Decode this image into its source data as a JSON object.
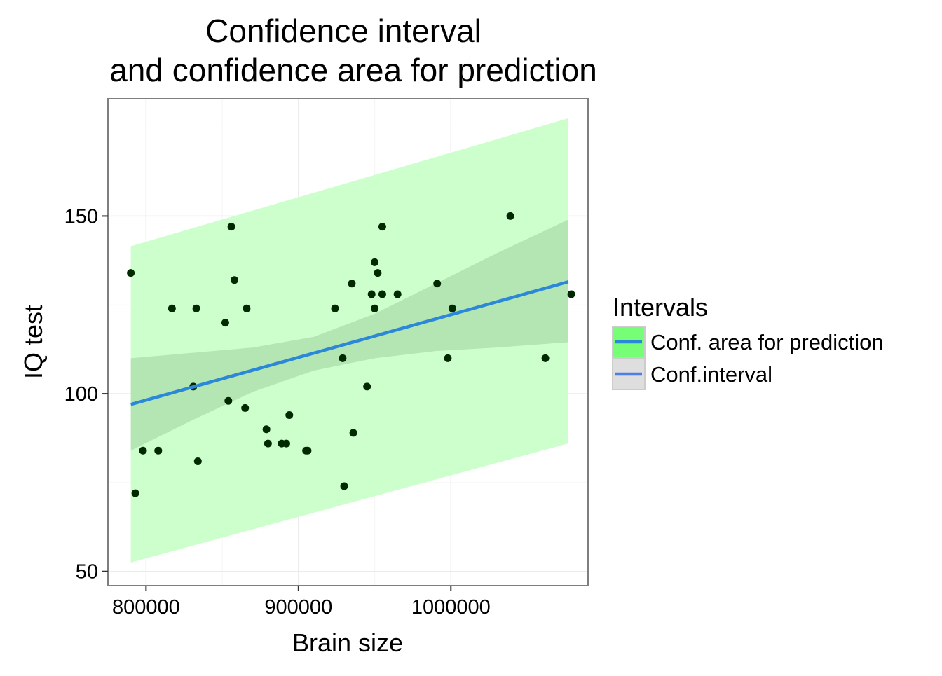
{
  "chart_data": {
    "type": "scatter",
    "title": [
      "Confidence interval",
      "and confidence area for prediction"
    ],
    "xlabel": "Brain size",
    "ylabel": "IQ test",
    "xlim": [
      775000,
      1090000
    ],
    "ylim": [
      46,
      183
    ],
    "x_ticks": [
      800000,
      900000,
      1000000
    ],
    "x_tick_labels": [
      "800000",
      "900000",
      "1000000"
    ],
    "y_ticks": [
      50,
      100,
      150
    ],
    "y_tick_labels": [
      "50",
      "100",
      "150"
    ],
    "grid": true,
    "legend": {
      "title": "Intervals",
      "placement": "right",
      "entries": [
        {
          "label": "Conf. area for prediction",
          "fill": "#76ff76",
          "line": "#2b88d8"
        },
        {
          "label": "Conf.interval",
          "fill": "#dedede",
          "line": "#4d7fe6"
        }
      ]
    },
    "points": [
      {
        "x": 790000,
        "y": 134
      },
      {
        "x": 793000,
        "y": 72
      },
      {
        "x": 798000,
        "y": 84
      },
      {
        "x": 808000,
        "y": 84
      },
      {
        "x": 817000,
        "y": 124
      },
      {
        "x": 831000,
        "y": 102
      },
      {
        "x": 833000,
        "y": 124
      },
      {
        "x": 834000,
        "y": 81
      },
      {
        "x": 852000,
        "y": 120
      },
      {
        "x": 854000,
        "y": 98
      },
      {
        "x": 856000,
        "y": 147
      },
      {
        "x": 858000,
        "y": 132
      },
      {
        "x": 865000,
        "y": 96
      },
      {
        "x": 866000,
        "y": 124
      },
      {
        "x": 879000,
        "y": 90
      },
      {
        "x": 880000,
        "y": 86
      },
      {
        "x": 889000,
        "y": 86
      },
      {
        "x": 892000,
        "y": 86
      },
      {
        "x": 894000,
        "y": 94
      },
      {
        "x": 905000,
        "y": 84
      },
      {
        "x": 906000,
        "y": 84
      },
      {
        "x": 924000,
        "y": 124
      },
      {
        "x": 929000,
        "y": 110
      },
      {
        "x": 930000,
        "y": 74
      },
      {
        "x": 935000,
        "y": 131
      },
      {
        "x": 936000,
        "y": 89
      },
      {
        "x": 945000,
        "y": 102
      },
      {
        "x": 948000,
        "y": 128
      },
      {
        "x": 950000,
        "y": 137
      },
      {
        "x": 950000,
        "y": 124
      },
      {
        "x": 952000,
        "y": 134
      },
      {
        "x": 955000,
        "y": 147
      },
      {
        "x": 955000,
        "y": 128
      },
      {
        "x": 965000,
        "y": 128
      },
      {
        "x": 991000,
        "y": 131
      },
      {
        "x": 998000,
        "y": 110
      },
      {
        "x": 1001000,
        "y": 124
      },
      {
        "x": 1039000,
        "y": 150
      },
      {
        "x": 1062000,
        "y": 110
      },
      {
        "x": 1079000,
        "y": 128
      }
    ],
    "regression_line": {
      "x": [
        790000,
        1077000
      ],
      "y": [
        97,
        131.5
      ]
    },
    "confidence_interval": {
      "x": [
        790000,
        830000,
        870000,
        910000,
        950000,
        990000,
        1030000,
        1077000
      ],
      "lower": [
        84,
        92.5,
        100.5,
        106.5,
        110,
        112,
        113,
        114.5
      ],
      "upper": [
        110,
        111.5,
        113,
        116,
        122.5,
        131,
        139.5,
        149
      ]
    },
    "prediction_interval": {
      "x": [
        790000,
        1077000
      ],
      "lower": [
        52.5,
        86
      ],
      "upper": [
        141.5,
        177.5
      ]
    },
    "colors": {
      "prediction_fill": "#ccffcc",
      "ci_fill": "#b4e6b4",
      "line": "#2b88d8",
      "points": "#002900",
      "legend_pred_key": "#76ff76",
      "legend_ci_key": "#dedede",
      "legend_ci_line": "#4d7fe6",
      "grid": "#ebebeb"
    }
  }
}
